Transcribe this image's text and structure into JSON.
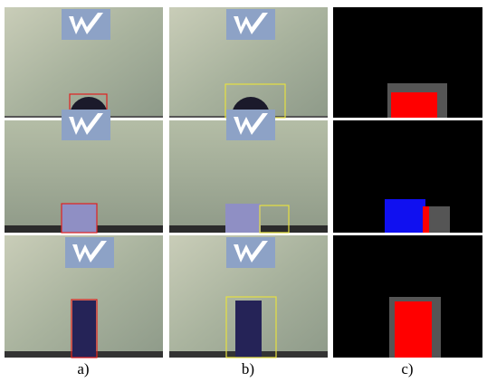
{
  "figure": {
    "captions": [
      "a)",
      "b)",
      "c)"
    ]
  }
}
